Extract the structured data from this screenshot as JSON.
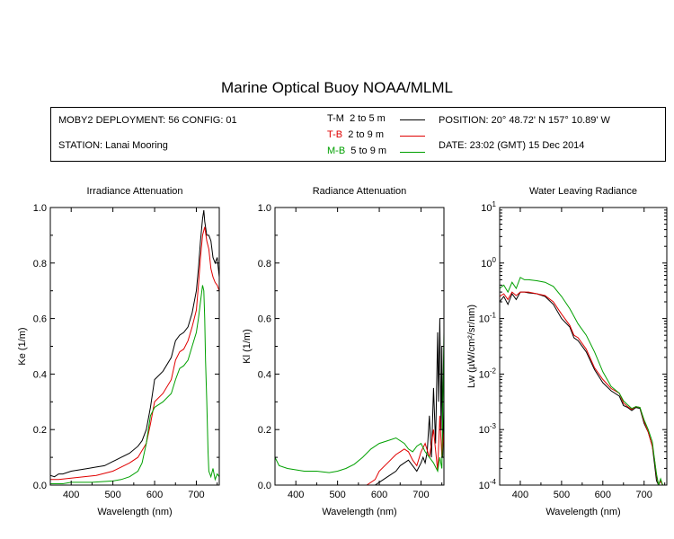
{
  "title": "Marine Optical Buoy NOAA/MLML",
  "info": {
    "deployment": "MOBY2 DEPLOYMENT: 56 CONFIG: 01",
    "station": "STATION: Lanai Mooring",
    "position": "POSITION: 20° 48.72' N   157° 10.89' W",
    "date": "DATE: 23:02 (GMT) 15 Dec 2014",
    "legend": [
      {
        "name": "T-M",
        "range": "2 to 5  m",
        "color": "#000000"
      },
      {
        "name": "T-B",
        "range": "2 to 9  m",
        "color": "#e00000"
      },
      {
        "name": "M-B",
        "range": "5 to 9  m",
        "color": "#00a000"
      }
    ]
  },
  "chart_data": [
    {
      "type": "line",
      "title": "Irradiance Attenuation",
      "xlabel": "Wavelength (nm)",
      "ylabel": "Ke  (1/m)",
      "xlim": [
        350,
        755
      ],
      "ylim": [
        0,
        1
      ],
      "xticks": [
        400,
        500,
        600,
        700
      ],
      "yticks": [
        0,
        0.2,
        0.4,
        0.6,
        0.8,
        1.0
      ],
      "ytick_labels": [
        "0.0",
        "0.2",
        "0.4",
        "0.6",
        "0.8",
        "1.0"
      ],
      "series": [
        {
          "name": "T-M",
          "color": "#000000",
          "x": [
            350,
            360,
            370,
            380,
            400,
            420,
            440,
            460,
            480,
            500,
            520,
            540,
            560,
            570,
            580,
            590,
            600,
            620,
            640,
            650,
            660,
            670,
            680,
            690,
            700,
            705,
            710,
            715,
            718,
            720,
            725,
            730,
            735,
            740,
            745,
            750,
            755
          ],
          "y": [
            0.035,
            0.03,
            0.04,
            0.04,
            0.05,
            0.055,
            0.06,
            0.065,
            0.07,
            0.085,
            0.1,
            0.115,
            0.14,
            0.16,
            0.2,
            0.28,
            0.38,
            0.41,
            0.46,
            0.52,
            0.54,
            0.55,
            0.57,
            0.62,
            0.7,
            0.78,
            0.88,
            0.96,
            0.99,
            0.95,
            0.9,
            0.9,
            0.88,
            0.82,
            0.8,
            0.82,
            0.75
          ]
        },
        {
          "name": "T-B",
          "color": "#e00000",
          "x": [
            350,
            370,
            400,
            430,
            460,
            500,
            520,
            540,
            560,
            580,
            590,
            600,
            620,
            640,
            650,
            660,
            670,
            680,
            690,
            700,
            705,
            710,
            715,
            720,
            725,
            730,
            735,
            740,
            745,
            750,
            755
          ],
          "y": [
            0.02,
            0.02,
            0.025,
            0.03,
            0.035,
            0.05,
            0.065,
            0.08,
            0.1,
            0.15,
            0.22,
            0.3,
            0.33,
            0.38,
            0.45,
            0.48,
            0.49,
            0.52,
            0.57,
            0.63,
            0.72,
            0.82,
            0.9,
            0.93,
            0.88,
            0.85,
            0.78,
            0.75,
            0.73,
            0.72,
            0.7
          ]
        },
        {
          "name": "M-B",
          "color": "#00a000",
          "x": [
            350,
            380,
            400,
            450,
            500,
            520,
            540,
            560,
            570,
            580,
            590,
            600,
            620,
            640,
            650,
            660,
            670,
            680,
            690,
            700,
            705,
            710,
            715,
            718,
            720,
            722,
            725,
            728,
            730,
            735,
            740,
            745,
            750,
            755
          ],
          "y": [
            0.005,
            0.005,
            0.01,
            0.01,
            0.015,
            0.02,
            0.03,
            0.05,
            0.08,
            0.15,
            0.25,
            0.28,
            0.3,
            0.33,
            0.38,
            0.42,
            0.43,
            0.45,
            0.5,
            0.55,
            0.6,
            0.66,
            0.72,
            0.7,
            0.6,
            0.45,
            0.3,
            0.12,
            0.05,
            0.03,
            0.06,
            0.02,
            0.04,
            0.03
          ]
        }
      ]
    },
    {
      "type": "line",
      "title": "Radiance Attenuation",
      "xlabel": "Wavelength (nm)",
      "ylabel": "Kl  (1/m)",
      "xlim": [
        350,
        755
      ],
      "ylim": [
        0,
        1
      ],
      "xticks": [
        400,
        500,
        600,
        700
      ],
      "yticks": [
        0,
        0.2,
        0.4,
        0.6,
        0.8,
        1.0
      ],
      "ytick_labels": [
        "0.0",
        "0.2",
        "0.4",
        "0.6",
        "0.8",
        "1.0"
      ],
      "series": [
        {
          "name": "T-M",
          "color": "#000000",
          "x": [
            590,
            600,
            620,
            640,
            650,
            660,
            670,
            680,
            690,
            700,
            705,
            710,
            715,
            720,
            725,
            730,
            735,
            740,
            742,
            745,
            748,
            750,
            752,
            755
          ],
          "y": [
            0.0,
            0.01,
            0.03,
            0.05,
            0.07,
            0.08,
            0.09,
            0.07,
            0.05,
            0.08,
            0.1,
            0.08,
            0.12,
            0.25,
            0.1,
            0.35,
            0.15,
            0.55,
            0.3,
            0.6,
            0.2,
            0.5,
            0.1,
            0.3
          ]
        },
        {
          "name": "T-B",
          "color": "#e00000",
          "x": [
            570,
            590,
            600,
            620,
            640,
            650,
            660,
            670,
            680,
            690,
            700,
            710,
            720,
            730,
            740,
            745,
            750,
            755
          ],
          "y": [
            0.0,
            0.02,
            0.05,
            0.08,
            0.11,
            0.12,
            0.13,
            0.12,
            0.09,
            0.07,
            0.12,
            0.15,
            0.1,
            0.2,
            0.05,
            0.25,
            0.1,
            0.2
          ]
        },
        {
          "name": "M-B",
          "color": "#00a000",
          "x": [
            350,
            360,
            380,
            400,
            420,
            450,
            480,
            500,
            520,
            540,
            560,
            580,
            600,
            620,
            640,
            660,
            670,
            680,
            690,
            700,
            710,
            720,
            730,
            740,
            745,
            750,
            755
          ],
          "y": [
            0.1,
            0.07,
            0.06,
            0.055,
            0.05,
            0.05,
            0.045,
            0.05,
            0.06,
            0.075,
            0.1,
            0.13,
            0.15,
            0.16,
            0.17,
            0.15,
            0.13,
            0.12,
            0.14,
            0.15,
            0.12,
            0.1,
            0.08,
            0.05,
            0.1,
            0.06,
            0.55
          ]
        }
      ]
    },
    {
      "type": "line",
      "title": "Water Leaving Radiance",
      "xlabel": "Wavelength (nm)",
      "ylabel": "Lw  (µW/cm²/sr/nm)",
      "xlim": [
        350,
        755
      ],
      "ylim": [
        0.0001,
        10
      ],
      "log_y": true,
      "xticks": [
        400,
        500,
        600,
        700
      ],
      "yticks_exp": [
        -4,
        -3,
        -2,
        -1,
        0,
        1
      ],
      "series": [
        {
          "name": "T-M",
          "color": "#000000",
          "x": [
            350,
            360,
            370,
            380,
            390,
            400,
            410,
            420,
            440,
            460,
            480,
            500,
            520,
            530,
            540,
            560,
            580,
            600,
            620,
            640,
            650,
            660,
            670,
            680,
            690,
            700,
            710,
            720,
            725,
            730,
            735,
            740,
            745
          ],
          "y": [
            0.2,
            0.25,
            0.18,
            0.28,
            0.22,
            0.3,
            0.3,
            0.29,
            0.28,
            0.25,
            0.18,
            0.1,
            0.07,
            0.045,
            0.04,
            0.025,
            0.012,
            0.007,
            0.005,
            0.004,
            0.0027,
            0.0025,
            0.0022,
            0.0025,
            0.0024,
            0.0013,
            0.0009,
            0.0005,
            0.00025,
            0.00012,
            0.0001,
            0.00012,
            0.0001
          ]
        },
        {
          "name": "T-B",
          "color": "#e00000",
          "x": [
            350,
            360,
            370,
            380,
            390,
            400,
            420,
            440,
            460,
            480,
            500,
            520,
            530,
            540,
            560,
            580,
            600,
            620,
            640,
            650,
            660,
            670,
            680,
            690,
            700,
            710,
            720,
            725,
            730,
            735,
            740,
            745
          ],
          "y": [
            0.25,
            0.28,
            0.22,
            0.3,
            0.26,
            0.3,
            0.3,
            0.28,
            0.26,
            0.2,
            0.12,
            0.075,
            0.05,
            0.045,
            0.028,
            0.013,
            0.008,
            0.0055,
            0.0045,
            0.003,
            0.0026,
            0.0023,
            0.0026,
            0.0025,
            0.0014,
            0.0009,
            0.0005,
            0.0003,
            0.00015,
            0.0001,
            0.00012,
            0.0001
          ]
        },
        {
          "name": "M-B",
          "color": "#00a000",
          "x": [
            350,
            360,
            370,
            380,
            390,
            400,
            410,
            420,
            440,
            460,
            480,
            500,
            520,
            540,
            560,
            580,
            600,
            620,
            640,
            650,
            660,
            670,
            680,
            690,
            700,
            710,
            720,
            725,
            730,
            735,
            740,
            745
          ],
          "y": [
            0.35,
            0.4,
            0.3,
            0.45,
            0.35,
            0.55,
            0.5,
            0.5,
            0.48,
            0.45,
            0.38,
            0.25,
            0.15,
            0.08,
            0.05,
            0.025,
            0.011,
            0.006,
            0.0045,
            0.0033,
            0.0028,
            0.0024,
            0.0026,
            0.0025,
            0.0015,
            0.001,
            0.0006,
            0.0003,
            0.00016,
            0.0001,
            0.00013,
            0.0001
          ]
        }
      ]
    }
  ]
}
